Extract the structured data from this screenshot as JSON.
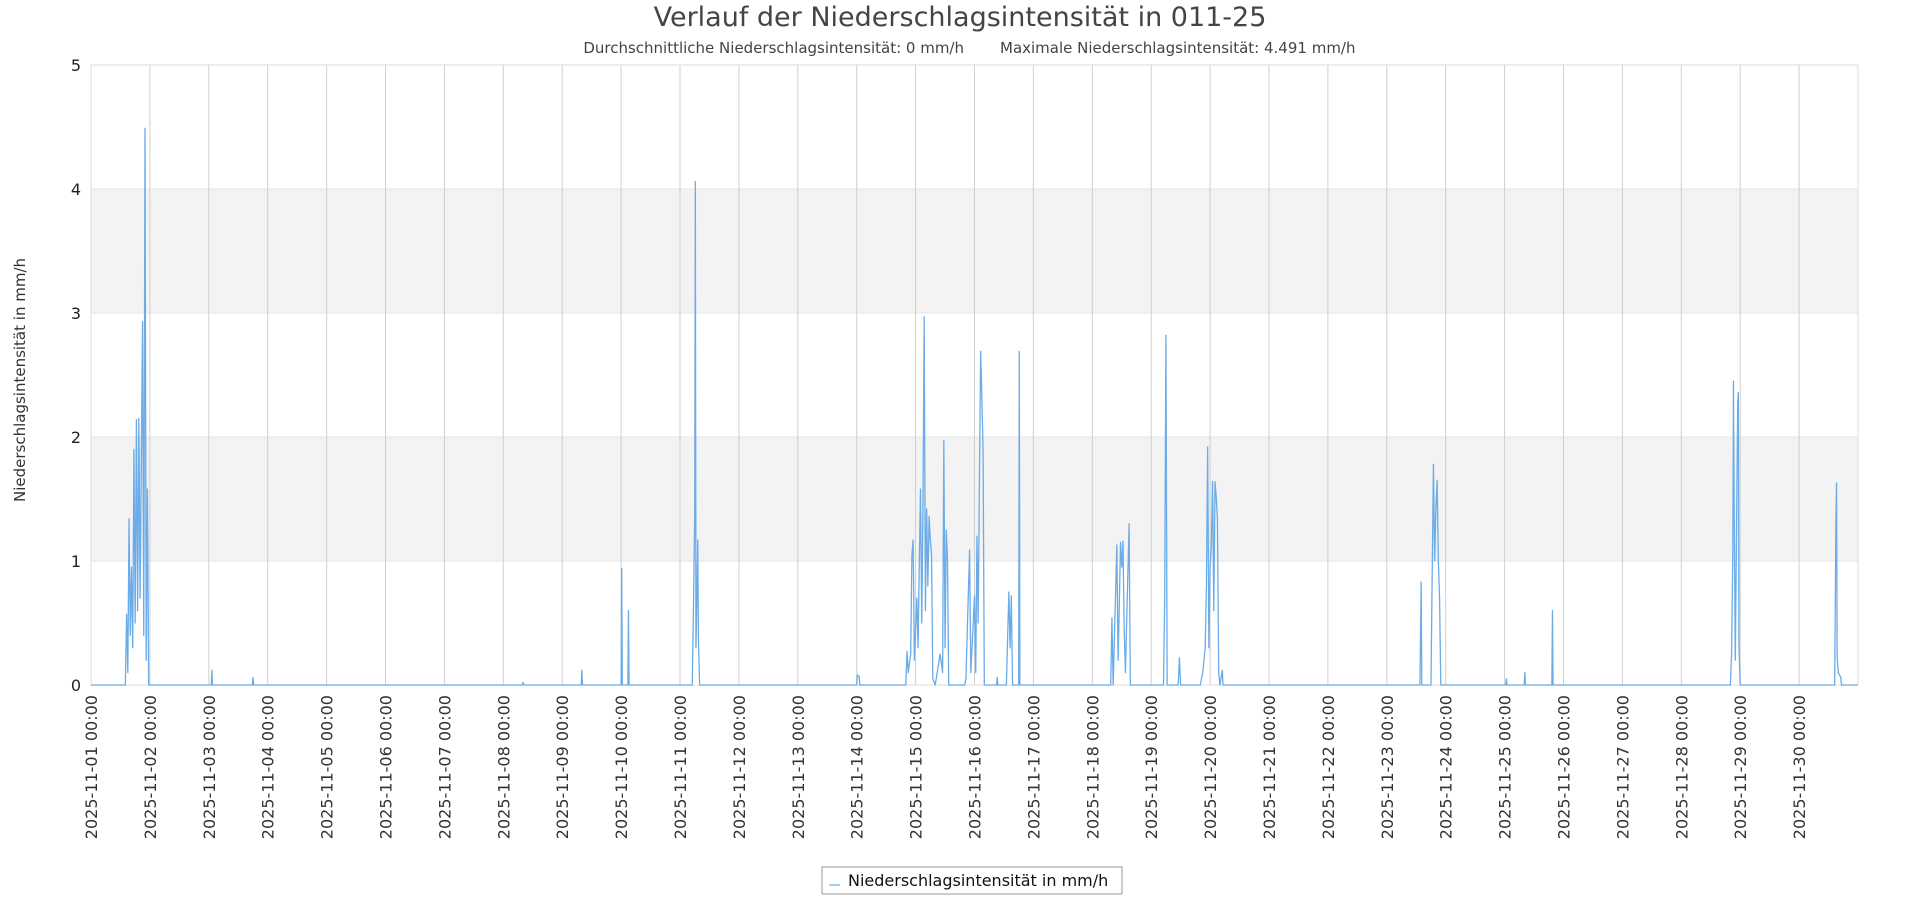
{
  "chart_data": {
    "type": "line",
    "title": "Verlauf der Niederschlagsintensität in 011-25",
    "subtitle_avg": "Durchschnittliche Niederschlagsintensität: 0 mm/h",
    "subtitle_max": "Maximale Niederschlagsintensität: 4.491 mm/h",
    "xlabel": "",
    "ylabel": "Niederschlagsintensität in mm/h",
    "ylim": [
      0,
      5
    ],
    "yticks": [
      "0",
      "1",
      "2",
      "3",
      "4",
      "5"
    ],
    "xlim": [
      "2025-11-01 00:00",
      "2025-12-01 00:00"
    ],
    "x_ticks": [
      "2025-11-01 00:00",
      "2025-11-02 00:00",
      "2025-11-03 00:00",
      "2025-11-04 00:00",
      "2025-11-05 00:00",
      "2025-11-06 00:00",
      "2025-11-07 00:00",
      "2025-11-08 00:00",
      "2025-11-09 00:00",
      "2025-11-10 00:00",
      "2025-11-11 00:00",
      "2025-11-12 00:00",
      "2025-11-13 00:00",
      "2025-11-14 00:00",
      "2025-11-15 00:00",
      "2025-11-16 00:00",
      "2025-11-17 00:00",
      "2025-11-18 00:00",
      "2025-11-19 00:00",
      "2025-11-20 00:00",
      "2025-11-21 00:00",
      "2025-11-22 00:00",
      "2025-11-23 00:00",
      "2025-11-24 00:00",
      "2025-11-25 00:00",
      "2025-11-26 00:00",
      "2025-11-27 00:00",
      "2025-11-28 00:00",
      "2025-11-29 00:00",
      "2025-11-30 00:00"
    ],
    "grid": true,
    "banded_rows": true,
    "legend_position": "bottom-center",
    "series": [
      {
        "name": "Niederschlagsintensität in mm/h",
        "color": "#6aabe8",
        "points": [
          [
            "2025-11-01 00:00",
            0
          ],
          [
            "2025-11-01 14:00",
            0
          ],
          [
            "2025-11-01 14:30",
            0.57
          ],
          [
            "2025-11-01 15:00",
            0.1
          ],
          [
            "2025-11-01 15:30",
            1.34
          ],
          [
            "2025-11-01 16:00",
            0.4
          ],
          [
            "2025-11-01 16:30",
            0.95
          ],
          [
            "2025-11-01 17:00",
            0.3
          ],
          [
            "2025-11-01 17:30",
            1.9
          ],
          [
            "2025-11-01 18:00",
            0.5
          ],
          [
            "2025-11-01 18:30",
            2.14
          ],
          [
            "2025-11-01 19:00",
            0.6
          ],
          [
            "2025-11-01 19:30",
            2.15
          ],
          [
            "2025-11-01 20:00",
            0.7
          ],
          [
            "2025-11-01 20:30",
            1.8
          ],
          [
            "2025-11-01 21:00",
            2.93
          ],
          [
            "2025-11-01 21:30",
            0.4
          ],
          [
            "2025-11-01 22:00",
            4.49
          ],
          [
            "2025-11-01 22:30",
            0.2
          ],
          [
            "2025-11-01 23:00",
            1.58
          ],
          [
            "2025-11-01 23:30",
            0
          ],
          [
            "2025-11-03 01:00",
            0
          ],
          [
            "2025-11-03 01:15",
            0.12
          ],
          [
            "2025-11-03 01:30",
            0
          ],
          [
            "2025-11-03 17:45",
            0
          ],
          [
            "2025-11-03 18:00",
            0.06
          ],
          [
            "2025-11-03 18:15",
            0
          ],
          [
            "2025-11-08 07:45",
            0
          ],
          [
            "2025-11-08 08:00",
            0.02
          ],
          [
            "2025-11-08 08:30",
            0
          ],
          [
            "2025-11-09 07:45",
            0
          ],
          [
            "2025-11-09 08:00",
            0.12
          ],
          [
            "2025-11-09 08:15",
            0
          ],
          [
            "2025-11-10 00:00",
            0
          ],
          [
            "2025-11-10 00:15",
            0.94
          ],
          [
            "2025-11-10 00:30",
            0
          ],
          [
            "2025-11-10 02:45",
            0
          ],
          [
            "2025-11-10 03:00",
            0.6
          ],
          [
            "2025-11-10 03:15",
            0
          ],
          [
            "2025-11-11 05:00",
            0
          ],
          [
            "2025-11-11 05:30",
            0.64
          ],
          [
            "2025-11-11 06:00",
            1.38
          ],
          [
            "2025-11-11 06:15",
            4.06
          ],
          [
            "2025-11-11 06:30",
            0.3
          ],
          [
            "2025-11-11 07:00",
            0.85
          ],
          [
            "2025-11-11 07:15",
            1.17
          ],
          [
            "2025-11-11 07:30",
            0.36
          ],
          [
            "2025-11-11 08:00",
            0
          ],
          [
            "2025-11-14 00:00",
            0
          ],
          [
            "2025-11-14 00:15",
            0.08
          ],
          [
            "2025-11-14 01:00",
            0.07
          ],
          [
            "2025-11-14 01:15",
            0
          ],
          [
            "2025-11-14 20:00",
            0
          ],
          [
            "2025-11-14 20:30",
            0.27
          ],
          [
            "2025-11-14 21:00",
            0.1
          ],
          [
            "2025-11-14 22:00",
            0.25
          ],
          [
            "2025-11-14 22:30",
            1.05
          ],
          [
            "2025-11-14 23:00",
            1.17
          ],
          [
            "2025-11-14 23:30",
            0.2
          ],
          [
            "2025-11-15 00:30",
            0.7
          ],
          [
            "2025-11-15 01:00",
            0.3
          ],
          [
            "2025-11-15 01:30",
            0.98
          ],
          [
            "2025-11-15 02:00",
            1.58
          ],
          [
            "2025-11-15 02:30",
            0.5
          ],
          [
            "2025-11-15 03:00",
            1.43
          ],
          [
            "2025-11-15 03:30",
            2.97
          ],
          [
            "2025-11-15 04:00",
            0.6
          ],
          [
            "2025-11-15 04:30",
            1.42
          ],
          [
            "2025-11-15 05:00",
            0.8
          ],
          [
            "2025-11-15 05:30",
            1.36
          ],
          [
            "2025-11-15 06:00",
            1.17
          ],
          [
            "2025-11-15 06:30",
            1.05
          ],
          [
            "2025-11-15 07:00",
            0.05
          ],
          [
            "2025-11-15 08:00",
            0
          ],
          [
            "2025-11-15 10:00",
            0.25
          ],
          [
            "2025-11-15 11:00",
            0.1
          ],
          [
            "2025-11-15 11:30",
            1.97
          ],
          [
            "2025-11-15 12:00",
            0.3
          ],
          [
            "2025-11-15 12:30",
            1.25
          ],
          [
            "2025-11-15 13:00",
            1.0
          ],
          [
            "2025-11-15 13:30",
            0
          ],
          [
            "2025-11-15 20:00",
            0
          ],
          [
            "2025-11-15 20:30",
            0.05
          ],
          [
            "2025-11-15 22:00",
            1.09
          ],
          [
            "2025-11-15 22:30",
            0.1
          ],
          [
            "2025-11-16 00:00",
            0.72
          ],
          [
            "2025-11-16 00:30",
            0.1
          ],
          [
            "2025-11-16 01:00",
            1.2
          ],
          [
            "2025-11-16 01:30",
            0.5
          ],
          [
            "2025-11-16 02:00",
            1.64
          ],
          [
            "2025-11-16 02:30",
            2.69
          ],
          [
            "2025-11-16 03:00",
            2.32
          ],
          [
            "2025-11-16 03:30",
            1.88
          ],
          [
            "2025-11-16 04:00",
            0
          ],
          [
            "2025-11-16 09:00",
            0
          ],
          [
            "2025-11-16 09:15",
            0.06
          ],
          [
            "2025-11-16 09:30",
            0
          ],
          [
            "2025-11-16 13:00",
            0
          ],
          [
            "2025-11-16 13:30",
            0.38
          ],
          [
            "2025-11-16 14:00",
            0.75
          ],
          [
            "2025-11-16 14:30",
            0.3
          ],
          [
            "2025-11-16 15:00",
            0.72
          ],
          [
            "2025-11-16 15:30",
            0
          ],
          [
            "2025-11-16 18:00",
            0
          ],
          [
            "2025-11-16 18:15",
            2.69
          ],
          [
            "2025-11-16 18:30",
            0
          ],
          [
            "2025-11-18 07:30",
            0
          ],
          [
            "2025-11-18 08:00",
            0.54
          ],
          [
            "2025-11-18 08:30",
            0
          ],
          [
            "2025-11-18 10:00",
            1.13
          ],
          [
            "2025-11-18 10:30",
            0.2
          ],
          [
            "2025-11-18 11:00",
            0.65
          ],
          [
            "2025-11-18 11:30",
            1.15
          ],
          [
            "2025-11-18 12:00",
            0.95
          ],
          [
            "2025-11-18 12:30",
            1.16
          ],
          [
            "2025-11-18 13:00",
            0.45
          ],
          [
            "2025-11-18 13:30",
            0.1
          ],
          [
            "2025-11-18 15:00",
            1.3
          ],
          [
            "2025-11-18 15:30",
            0
          ],
          [
            "2025-11-19 05:00",
            0
          ],
          [
            "2025-11-19 05:30",
            0.7
          ],
          [
            "2025-11-19 06:00",
            2.82
          ],
          [
            "2025-11-19 06:30",
            0
          ],
          [
            "2025-11-19 11:00",
            0
          ],
          [
            "2025-11-19 11:30",
            0.22
          ],
          [
            "2025-11-19 12:00",
            0
          ],
          [
            "2025-11-19 20:00",
            0
          ],
          [
            "2025-11-19 21:00",
            0.1
          ],
          [
            "2025-11-19 22:00",
            0.3
          ],
          [
            "2025-11-19 22:30",
            0.8
          ],
          [
            "2025-11-19 23:00",
            1.92
          ],
          [
            "2025-11-19 23:30",
            0.3
          ],
          [
            "2025-11-20 00:00",
            0.94
          ],
          [
            "2025-11-20 00:30",
            1.13
          ],
          [
            "2025-11-20 01:00",
            1.64
          ],
          [
            "2025-11-20 01:30",
            0.6
          ],
          [
            "2025-11-20 02:00",
            1.64
          ],
          [
            "2025-11-20 02:30",
            1.51
          ],
          [
            "2025-11-20 03:00",
            1.33
          ],
          [
            "2025-11-20 03:30",
            0.1
          ],
          [
            "2025-11-20 04:00",
            0
          ],
          [
            "2025-11-20 05:00",
            0.12
          ],
          [
            "2025-11-20 05:15",
            0
          ],
          [
            "2025-11-23 13:30",
            0
          ],
          [
            "2025-11-23 14:00",
            0.83
          ],
          [
            "2025-11-23 14:15",
            0
          ],
          [
            "2025-11-23 18:00",
            0
          ],
          [
            "2025-11-23 18:30",
            0.9
          ],
          [
            "2025-11-23 19:00",
            1.78
          ],
          [
            "2025-11-23 19:30",
            1.0
          ],
          [
            "2025-11-23 20:00",
            1.42
          ],
          [
            "2025-11-23 20:30",
            1.65
          ],
          [
            "2025-11-23 21:00",
            1.0
          ],
          [
            "2025-11-23 21:30",
            0.7
          ],
          [
            "2025-11-23 22:00",
            0
          ],
          [
            "2025-11-25 00:30",
            0
          ],
          [
            "2025-11-25 00:45",
            0.05
          ],
          [
            "2025-11-25 01:00",
            0
          ],
          [
            "2025-11-25 08:00",
            0
          ],
          [
            "2025-11-25 08:15",
            0.1
          ],
          [
            "2025-11-25 08:30",
            0
          ],
          [
            "2025-11-25 19:15",
            0
          ],
          [
            "2025-11-25 19:30",
            0.6
          ],
          [
            "2025-11-25 19:45",
            0
          ],
          [
            "2025-11-28 20:00",
            0
          ],
          [
            "2025-11-28 20:30",
            0.25
          ],
          [
            "2025-11-28 21:00",
            1.1
          ],
          [
            "2025-11-28 21:15",
            2.45
          ],
          [
            "2025-11-28 21:30",
            1.55
          ],
          [
            "2025-11-28 22:00",
            0.2
          ],
          [
            "2025-11-28 23:00",
            2.28
          ],
          [
            "2025-11-28 23:15",
            2.36
          ],
          [
            "2025-11-28 23:30",
            0.3
          ],
          [
            "2025-11-29 00:00",
            0
          ],
          [
            "2025-11-30 14:30",
            0
          ],
          [
            "2025-11-30 15:00",
            1.33
          ],
          [
            "2025-11-30 15:15",
            1.63
          ],
          [
            "2025-11-30 15:30",
            0.22
          ],
          [
            "2025-11-30 16:00",
            0.1
          ],
          [
            "2025-11-30 17:00",
            0.06
          ],
          [
            "2025-11-30 17:15",
            0
          ],
          [
            "2025-12-01 00:00",
            0
          ]
        ]
      }
    ]
  },
  "legend": {
    "label": "Niederschlagsintensität in mm/h"
  }
}
